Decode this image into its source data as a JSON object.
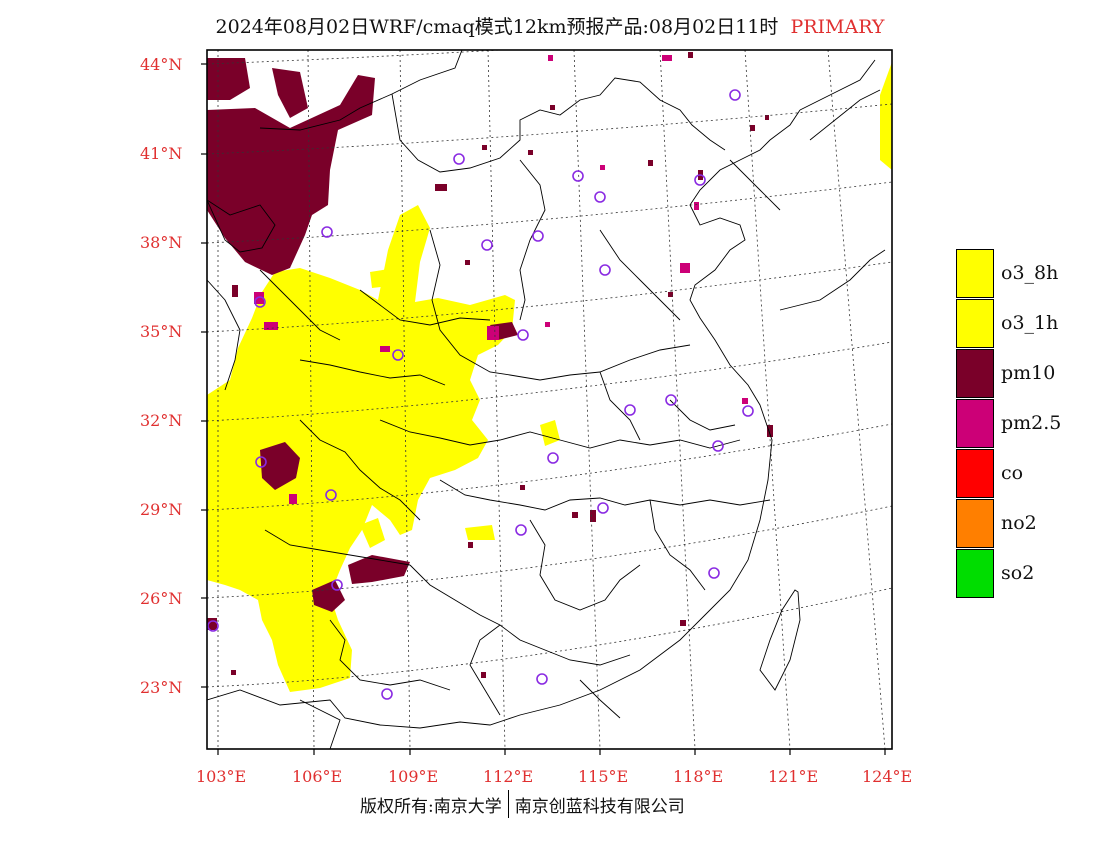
{
  "title": {
    "main": "2024年08月02日WRF/cmaq模式12km预报产品:08月02日11时",
    "tag": "PRIMARY"
  },
  "axes": {
    "lon_ticks": [
      "103°E",
      "106°E",
      "109°E",
      "112°E",
      "115°E",
      "118°E",
      "121°E",
      "124°E"
    ],
    "lat_ticks": [
      "44°N",
      "41°N",
      "38°N",
      "35°N",
      "32°N",
      "29°N",
      "26°N",
      "23°N"
    ],
    "lon_values": [
      103,
      106,
      109,
      112,
      115,
      118,
      121,
      124
    ],
    "lat_values": [
      44,
      41,
      38,
      35,
      32,
      29,
      26,
      23
    ]
  },
  "legend": [
    {
      "label": "o3_8h",
      "color": "#ffff00"
    },
    {
      "label": "o3_1h",
      "color": "#ffff00"
    },
    {
      "label": "pm10",
      "color": "#7a0029"
    },
    {
      "label": "pm2.5",
      "color": "#cc0077"
    },
    {
      "label": "co",
      "color": "#ff0000"
    },
    {
      "label": "no2",
      "color": "#ff7f00"
    },
    {
      "label": "so2",
      "color": "#00dd00"
    }
  ],
  "colors": {
    "tick_text": "#e03030",
    "station_marker": "#8a2be2",
    "boundary": "#000000"
  },
  "footer": {
    "left": "版权所有:南京大学",
    "right": "南京创蓝科技有限公司"
  }
}
